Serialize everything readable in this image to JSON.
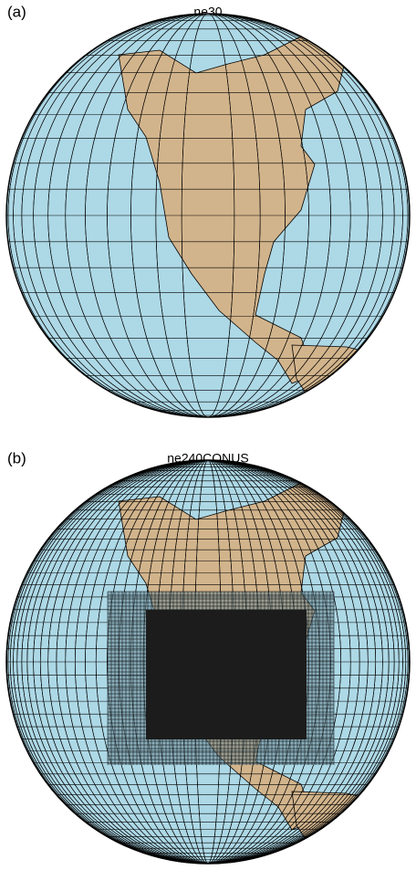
{
  "panels": [
    {
      "label": "(a)",
      "title": "ne30"
    },
    {
      "label": "(b)",
      "title": "ne240CONUS"
    }
  ]
}
